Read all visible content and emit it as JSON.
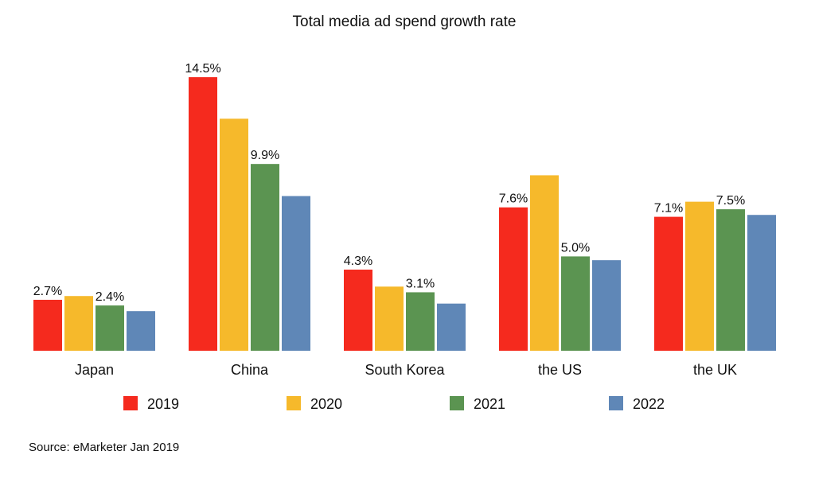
{
  "chart_data": {
    "type": "bar",
    "title": "Total media ad spend growth rate",
    "xlabel": "",
    "ylabel": "",
    "ylim": [
      0,
      15
    ],
    "grid": false,
    "legend_position": "bottom",
    "categories": [
      "Japan",
      "China",
      "South Korea",
      "the US",
      "the UK"
    ],
    "series": [
      {
        "name": "2019",
        "color": "#f52a1e",
        "values": [
          2.7,
          14.5,
          4.3,
          7.6,
          7.1
        ],
        "labels": [
          "2.7%",
          "14.5%",
          "4.3%",
          "7.6%",
          "7.1%"
        ]
      },
      {
        "name": "2020",
        "color": "#f6b92b",
        "values": [
          2.9,
          12.3,
          3.4,
          9.3,
          7.9
        ],
        "labels": [
          null,
          null,
          null,
          null,
          null
        ]
      },
      {
        "name": "2021",
        "color": "#5b9451",
        "values": [
          2.4,
          9.9,
          3.1,
          5.0,
          7.5
        ],
        "labels": [
          "2.4%",
          "9.9%",
          "3.1%",
          "5.0%",
          "7.5%"
        ]
      },
      {
        "name": "2022",
        "color": "#5f87b7",
        "values": [
          2.1,
          8.2,
          2.5,
          4.8,
          7.2
        ],
        "labels": [
          null,
          null,
          null,
          null,
          null
        ]
      }
    ],
    "source": "Source: eMarketer Jan 2019"
  }
}
